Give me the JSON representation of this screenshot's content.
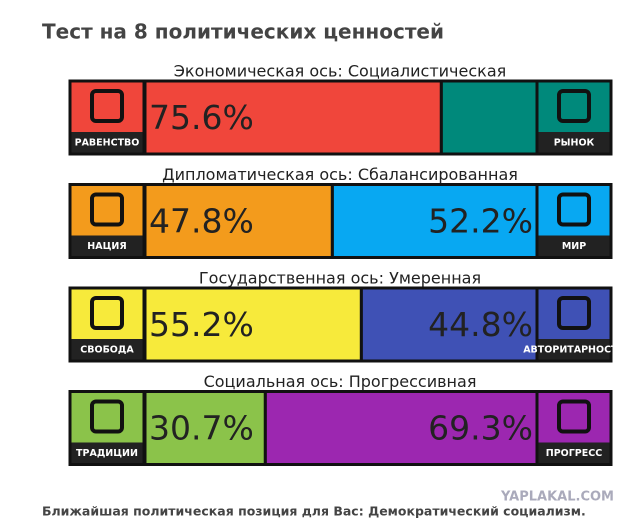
{
  "title": "Тест на 8 политических ценностей",
  "chart_data": [
    {
      "type": "bar",
      "title": "Экономическая ось: Социалистическая",
      "series": [
        {
          "name": "РАВЕНСТВО",
          "color": "#f0463b",
          "values": [
            75.6
          ],
          "value_labels": [
            "75.6%"
          ]
        },
        {
          "name": "РЫНОК",
          "color": "#00897b",
          "values": [
            24.4
          ]
        }
      ]
    },
    {
      "type": "bar",
      "title": "Дипломатическая ось: Сбалансированная",
      "series": [
        {
          "name": "НАЦИЯ",
          "color": "#f39b1c",
          "values": [
            47.8
          ],
          "value_labels": [
            "47.8%"
          ]
        },
        {
          "name": "МИР",
          "color": "#08a8f2",
          "values": [
            52.2
          ],
          "value_labels": [
            "52.2%"
          ]
        }
      ]
    },
    {
      "type": "bar",
      "title": "Государственная ось: Умеренная",
      "series": [
        {
          "name": "СВОБОДА",
          "color": "#f7ea3b",
          "values": [
            55.2
          ],
          "value_labels": [
            "55.2%"
          ]
        },
        {
          "name": "АВТОРИТАРНОСТЬ",
          "color": "#3f51b5",
          "values": [
            44.8
          ],
          "value_labels": [
            "44.8%"
          ]
        }
      ]
    },
    {
      "type": "bar",
      "title": "Социальная ось: Прогрессивная",
      "series": [
        {
          "name": "ТРАДИЦИИ",
          "color": "#8bc34a",
          "values": [
            30.7
          ],
          "value_labels": [
            "30.7%"
          ]
        },
        {
          "name": "ПРОГРЕСС",
          "color": "#9c27b0",
          "values": [
            69.3
          ],
          "value_labels": [
            "69.3%"
          ]
        }
      ]
    }
  ],
  "footer": "Ближайшая политическая позиция для Вас: Демократический социализм.",
  "watermark": "YAPLAKAL.COM"
}
